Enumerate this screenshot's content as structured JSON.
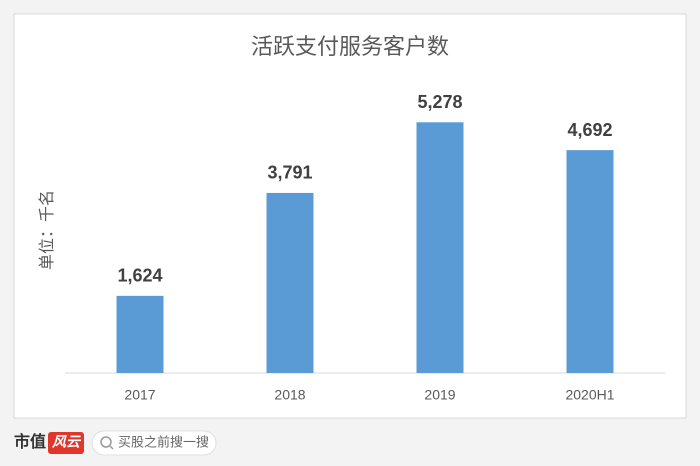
{
  "chart_data": {
    "type": "bar",
    "title": "活跃支付服务客户数",
    "y_label": "单位：千名",
    "categories": [
      "2017",
      "2018",
      "2019",
      "2020H1"
    ],
    "values": [
      1624,
      3791,
      5278,
      4692
    ],
    "value_labels": [
      "1,624",
      "3,791",
      "5,278",
      "4,692"
    ],
    "color": "#5b9bd5",
    "ylim": [
      0,
      6000
    ],
    "grid": false
  },
  "footer": {
    "brand": "市值",
    "logo": "风云",
    "search_placeholder": "买股之前搜一搜"
  }
}
